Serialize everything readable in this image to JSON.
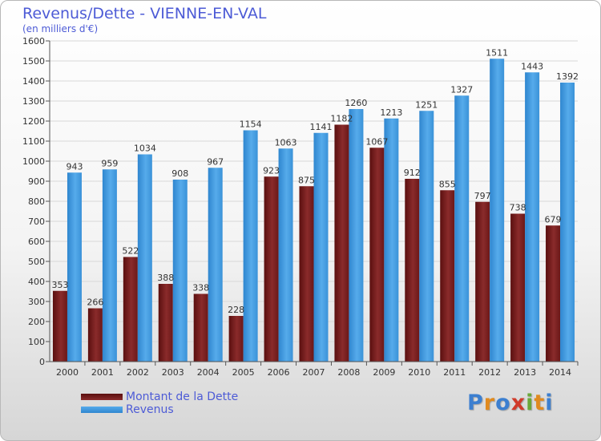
{
  "chart_data": {
    "type": "bar",
    "title": "Revenus/Dette - VIENNE-EN-VAL",
    "subtitle": "(en milliers d'€)",
    "categories": [
      "2000",
      "2001",
      "2002",
      "2003",
      "2004",
      "2005",
      "2006",
      "2007",
      "2008",
      "2009",
      "2010",
      "2011",
      "2012",
      "2013",
      "2014"
    ],
    "series": [
      {
        "name": "Montant de la Dette",
        "color": "#7a1f1f",
        "values": [
          353,
          266,
          522,
          388,
          338,
          228,
          923,
          875,
          1182,
          1067,
          912,
          855,
          797,
          738,
          679
        ],
        "labels": [
          "353",
          "266",
          "522",
          "388",
          "338",
          "228",
          "923",
          "875",
          "1182",
          "1067",
          "912",
          "855",
          "797",
          "738",
          "679"
        ]
      },
      {
        "name": "Revenus",
        "color": "#3d97dc",
        "values": [
          943,
          959,
          1034,
          908,
          967,
          1154,
          1063,
          1141,
          1260,
          1213,
          1251,
          1327,
          1511,
          1443,
          1392
        ],
        "labels": [
          "943",
          "959",
          "1034",
          "908",
          "967",
          "1154",
          "1063",
          "1141",
          "1260",
          "1213",
          "1251",
          "1327",
          "1511",
          "1443",
          "1392"
        ]
      }
    ],
    "ylim": [
      0,
      1600
    ],
    "yticks": [
      0,
      100,
      200,
      300,
      400,
      500,
      600,
      700,
      800,
      900,
      1000,
      1100,
      1200,
      1300,
      1400,
      1500,
      1600
    ],
    "grid": true,
    "legend_position": "bottom-left"
  },
  "legend": {
    "debt_label": "Montant de la Dette",
    "revenue_label": "Revenus"
  },
  "logo": {
    "text": "Proxiti"
  }
}
